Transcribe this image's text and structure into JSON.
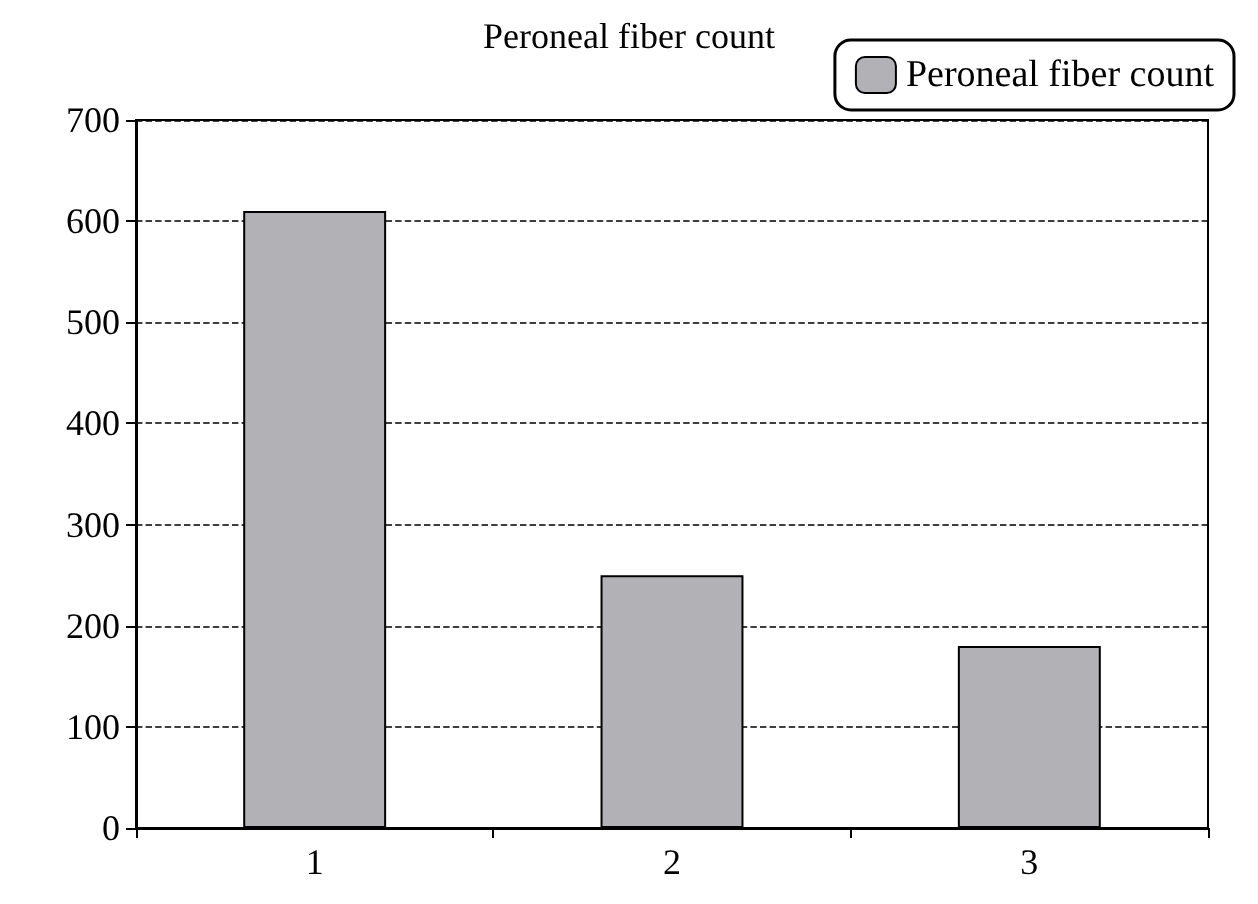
{
  "chart_data": {
    "type": "bar",
    "title": "Peroneal fiber count",
    "categories": [
      "1",
      "2",
      "3"
    ],
    "series": [
      {
        "name": "Peroneal fiber count",
        "color": "#b2b2b6",
        "values": [
          610,
          250,
          180
        ]
      }
    ],
    "ylim": [
      0,
      700
    ],
    "yticks": [
      0,
      100,
      200,
      300,
      400,
      500,
      600,
      700
    ],
    "grid": "y",
    "legend": "top right"
  }
}
